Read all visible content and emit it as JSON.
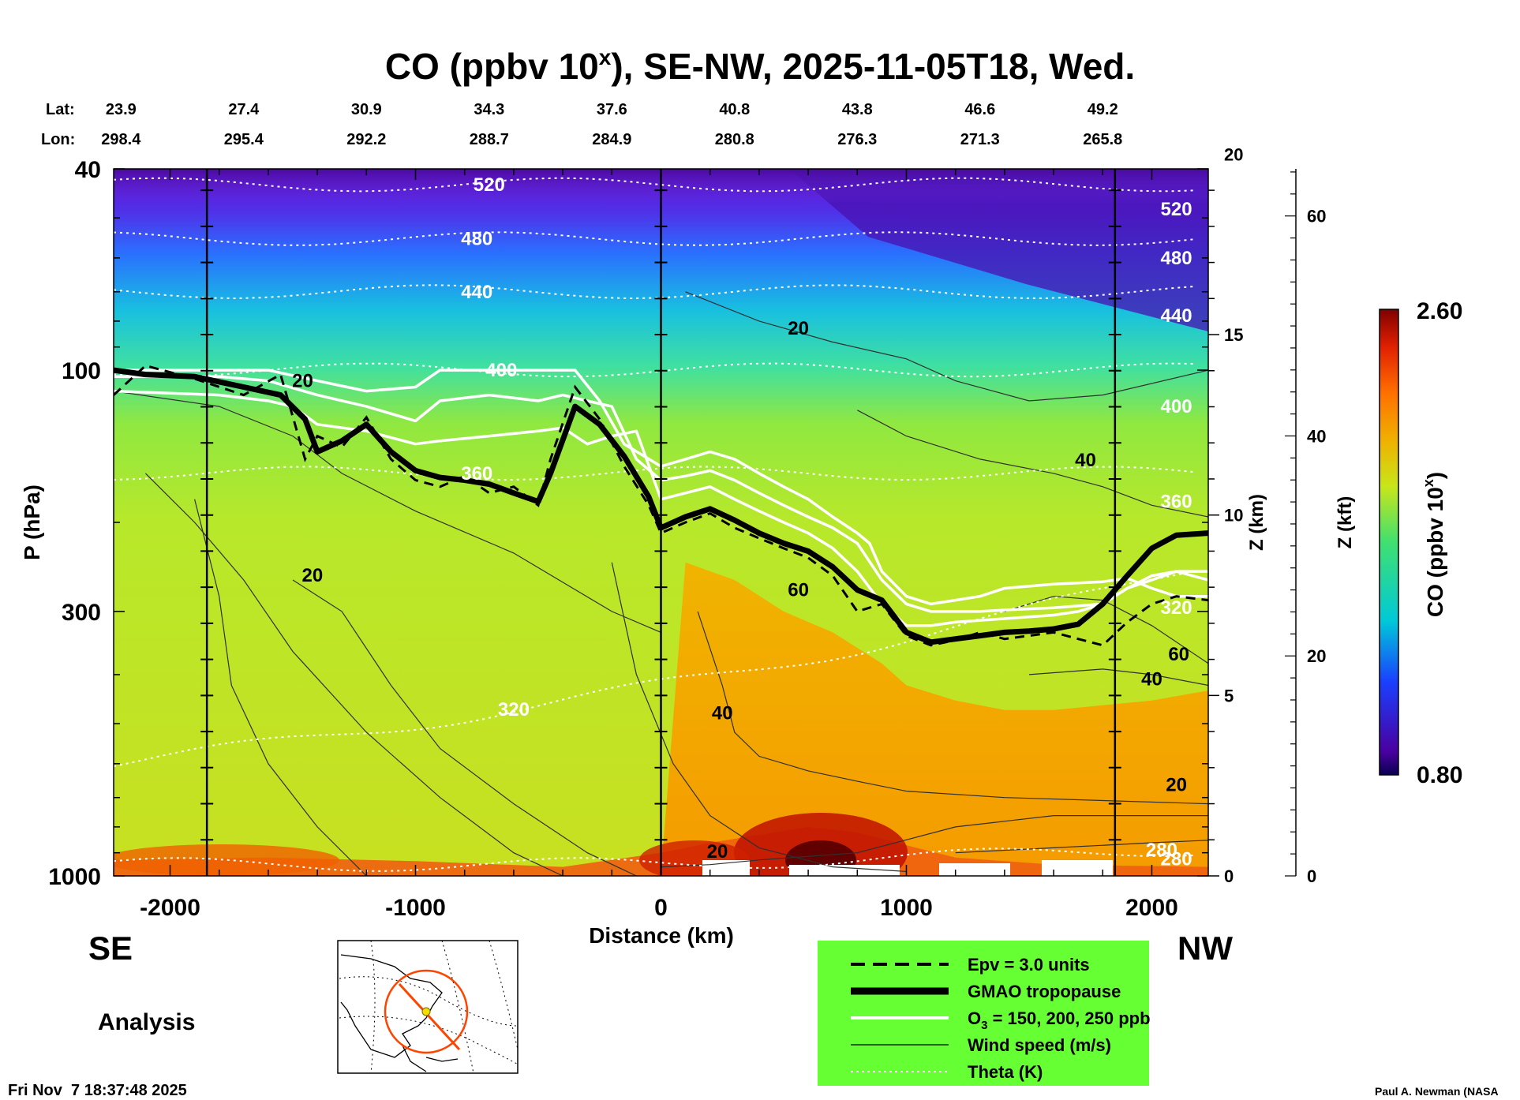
{
  "chart_data": {
    "type": "heatmap",
    "title": {
      "prefix": "CO (ppbv 10",
      "superscript": "x",
      "suffix": "), SE-NW, 2025-11-05T18, Wed."
    },
    "lat": {
      "label": "Lat:",
      "values": [
        "23.9",
        "27.4",
        "30.9",
        "34.3",
        "37.6",
        "40.8",
        "43.8",
        "46.6",
        "49.2"
      ]
    },
    "lon": {
      "label": "Lon:",
      "values": [
        "298.4",
        "295.4",
        "292.2",
        "288.7",
        "284.9",
        "280.8",
        "276.3",
        "271.3",
        "265.8"
      ]
    },
    "coord_distances_km": [
      -2200,
      -1700,
      -1200,
      -700,
      -200,
      300,
      800,
      1300,
      1800
    ],
    "x_axis": {
      "label": "Distance (km)",
      "range": [
        -2230,
        2230
      ],
      "ticks": [
        -2000,
        -1000,
        0,
        1000,
        2000
      ]
    },
    "y_axis": {
      "label": "P (hPa)",
      "scale": "log",
      "range": [
        1000,
        40
      ],
      "ticks": [
        40,
        100,
        300,
        1000
      ]
    },
    "z_km_axis": {
      "label": "Z (km)",
      "ticks": [
        0,
        5,
        10,
        15,
        20
      ]
    },
    "z_kft_axis": {
      "label": "Z (kft)",
      "ticks": [
        0,
        20,
        40,
        60
      ]
    },
    "colorbar": {
      "label_prefix": "CO (ppbv 10",
      "label_sup": "x",
      "label_suffix": ")",
      "min_label": "0.80",
      "max_label": "2.60",
      "min": 0.8,
      "max": 2.6
    },
    "vertical_lines_km": [
      -1850,
      0,
      1850
    ],
    "tropopause_hPa": {
      "x": [
        -2230,
        -2100,
        -1900,
        -1700,
        -1550,
        -1450,
        -1400,
        -1300,
        -1200,
        -1100,
        -1000,
        -900,
        -800,
        -700,
        -600,
        -500,
        -450,
        -350,
        -250,
        -150,
        -50,
        0,
        100,
        200,
        300,
        400,
        500,
        600,
        700,
        800,
        900,
        1000,
        1100,
        1200,
        1300,
        1400,
        1500,
        1600,
        1700,
        1800,
        1900,
        2000,
        2100,
        2230
      ],
      "p": [
        100,
        102,
        103,
        108,
        112,
        125,
        145,
        138,
        128,
        145,
        158,
        163,
        165,
        168,
        175,
        182,
        160,
        118,
        128,
        148,
        178,
        205,
        195,
        188,
        198,
        210,
        220,
        228,
        245,
        272,
        285,
        330,
        345,
        340,
        335,
        330,
        328,
        325,
        318,
        290,
        255,
        225,
        212,
        210
      ]
    },
    "epv_hPa": {
      "x": [
        -2230,
        -2100,
        -1900,
        -1700,
        -1550,
        -1450,
        -1400,
        -1300,
        -1200,
        -1100,
        -1000,
        -900,
        -800,
        -700,
        -600,
        -500,
        -450,
        -350,
        -250,
        -150,
        -50,
        0,
        100,
        200,
        300,
        400,
        500,
        600,
        700,
        800,
        900,
        1000,
        1100,
        1200,
        1300,
        1400,
        1500,
        1600,
        1700,
        1800,
        1900,
        2000,
        2100,
        2230
      ],
      "p": [
        112,
        98,
        104,
        112,
        102,
        150,
        135,
        142,
        124,
        150,
        165,
        170,
        162,
        175,
        170,
        185,
        150,
        108,
        125,
        155,
        185,
        210,
        200,
        192,
        205,
        215,
        225,
        235,
        255,
        300,
        290,
        335,
        350,
        342,
        330,
        340,
        335,
        330,
        340,
        350,
        315,
        290,
        280,
        285
      ]
    },
    "ozone_contours_hPa": [
      {
        "ppb": 150,
        "x": [
          -2230,
          -1800,
          -1600,
          -1500,
          -1400,
          -1200,
          -1000,
          -900,
          -700,
          -500,
          -400,
          -300,
          -200,
          -100,
          0,
          100,
          200,
          300,
          400,
          500,
          600,
          700,
          800,
          900,
          1000,
          1100,
          1200,
          1400,
          1600,
          1700,
          1800,
          1900,
          2000,
          2100,
          2230
        ],
        "p": [
          110,
          112,
          115,
          118,
          128,
          132,
          140,
          138,
          135,
          132,
          130,
          140,
          135,
          132,
          180,
          175,
          170,
          180,
          190,
          200,
          210,
          225,
          250,
          290,
          320,
          320,
          315,
          310,
          305,
          300,
          290,
          270,
          260,
          250,
          250
        ]
      },
      {
        "ppb": 200,
        "x": [
          -2230,
          -1800,
          -1600,
          -1400,
          -1200,
          -1000,
          -900,
          -700,
          -500,
          -400,
          -300,
          -200,
          -100,
          0,
          100,
          200,
          300,
          400,
          500,
          600,
          700,
          800,
          900,
          1000,
          1100,
          1200,
          1300,
          1400,
          1600,
          1800,
          1900,
          2000,
          2100,
          2230
        ],
        "p": [
          103,
          103,
          105,
          112,
          118,
          126,
          115,
          112,
          115,
          112,
          115,
          118,
          150,
          165,
          162,
          158,
          165,
          175,
          185,
          195,
          205,
          220,
          260,
          290,
          300,
          300,
          300,
          298,
          295,
          290,
          270,
          255,
          250,
          260
        ]
      },
      {
        "ppb": 250,
        "x": [
          -2230,
          -1800,
          -1600,
          -1400,
          -1200,
          -1000,
          -900,
          -850,
          -500,
          -350,
          -250,
          -150,
          0,
          100,
          200,
          300,
          400,
          500,
          600,
          700,
          800,
          850,
          900,
          1000,
          1100,
          1200,
          1300,
          1400,
          1600,
          1800,
          1900,
          2000,
          2100,
          2230
        ],
        "p": [
          100,
          100,
          100,
          105,
          110,
          108,
          100,
          100,
          100,
          100,
          115,
          140,
          155,
          150,
          145,
          150,
          160,
          170,
          180,
          195,
          210,
          220,
          250,
          280,
          290,
          285,
          280,
          270,
          265,
          262,
          258,
          270,
          280,
          280
        ]
      }
    ],
    "wind_contour_labels": [
      {
        "x": -1460,
        "p": 108,
        "text": "20"
      },
      {
        "x": -1420,
        "p": 262,
        "text": "20"
      },
      {
        "x": 560,
        "p": 85,
        "text": "20"
      },
      {
        "x": 1730,
        "p": 155,
        "text": "40"
      },
      {
        "x": 560,
        "p": 280,
        "text": "60"
      },
      {
        "x": 250,
        "p": 490,
        "text": "40"
      },
      {
        "x": 2110,
        "p": 375,
        "text": "60"
      },
      {
        "x": 2000,
        "p": 420,
        "text": "40"
      },
      {
        "x": 2100,
        "p": 680,
        "text": "20"
      },
      {
        "x": 230,
        "p": 920,
        "text": "20"
      }
    ],
    "theta_contours": [
      {
        "K": 520,
        "hPa": 43,
        "label_x": -700
      },
      {
        "K": 480,
        "hPa": 55,
        "label_x": -750
      },
      {
        "K": 440,
        "hPa": 70,
        "label_x": -750
      },
      {
        "K": 400,
        "hPa": 100,
        "label_x": -650
      },
      {
        "K": 360,
        "hPa": 160,
        "label_x": -750
      },
      {
        "K": 320,
        "hPa": 480,
        "label_x": -600
      },
      {
        "K": 280,
        "hPa": 950,
        "label_x": 2040
      }
    ],
    "theta_right_labels": [
      {
        "p": 48,
        "text": "520"
      },
      {
        "p": 60,
        "text": "480"
      },
      {
        "p": 78,
        "text": "440"
      },
      {
        "p": 118,
        "text": "400"
      },
      {
        "p": 182,
        "text": "360"
      },
      {
        "p": 295,
        "text": "320"
      },
      {
        "p": 925,
        "text": "280"
      }
    ],
    "legend": {
      "items": [
        {
          "label": "Epv = 3.0 units",
          "style": "dashed"
        },
        {
          "label": "GMAO tropopause",
          "style": "thick"
        },
        {
          "label_prefix": "O",
          "label_sub": "3",
          "label_suffix": " = 150, 200, 250 ppb",
          "style": "white"
        },
        {
          "label": "Wind speed (m/s)",
          "style": "thin"
        },
        {
          "label": "Theta (K)",
          "style": "dotted"
        }
      ]
    },
    "colors": {
      "legend_bg": "#66ff33",
      "tropopause": "#000000",
      "ozone": "#ffffff",
      "map_marker": "#ff4400"
    }
  },
  "labels": {
    "se": "SE",
    "nw": "NW",
    "analysis": "Analysis",
    "timestamp": "Fri Nov  7 18:37:48 2025",
    "credit": "Paul A. Newman (NASA"
  }
}
